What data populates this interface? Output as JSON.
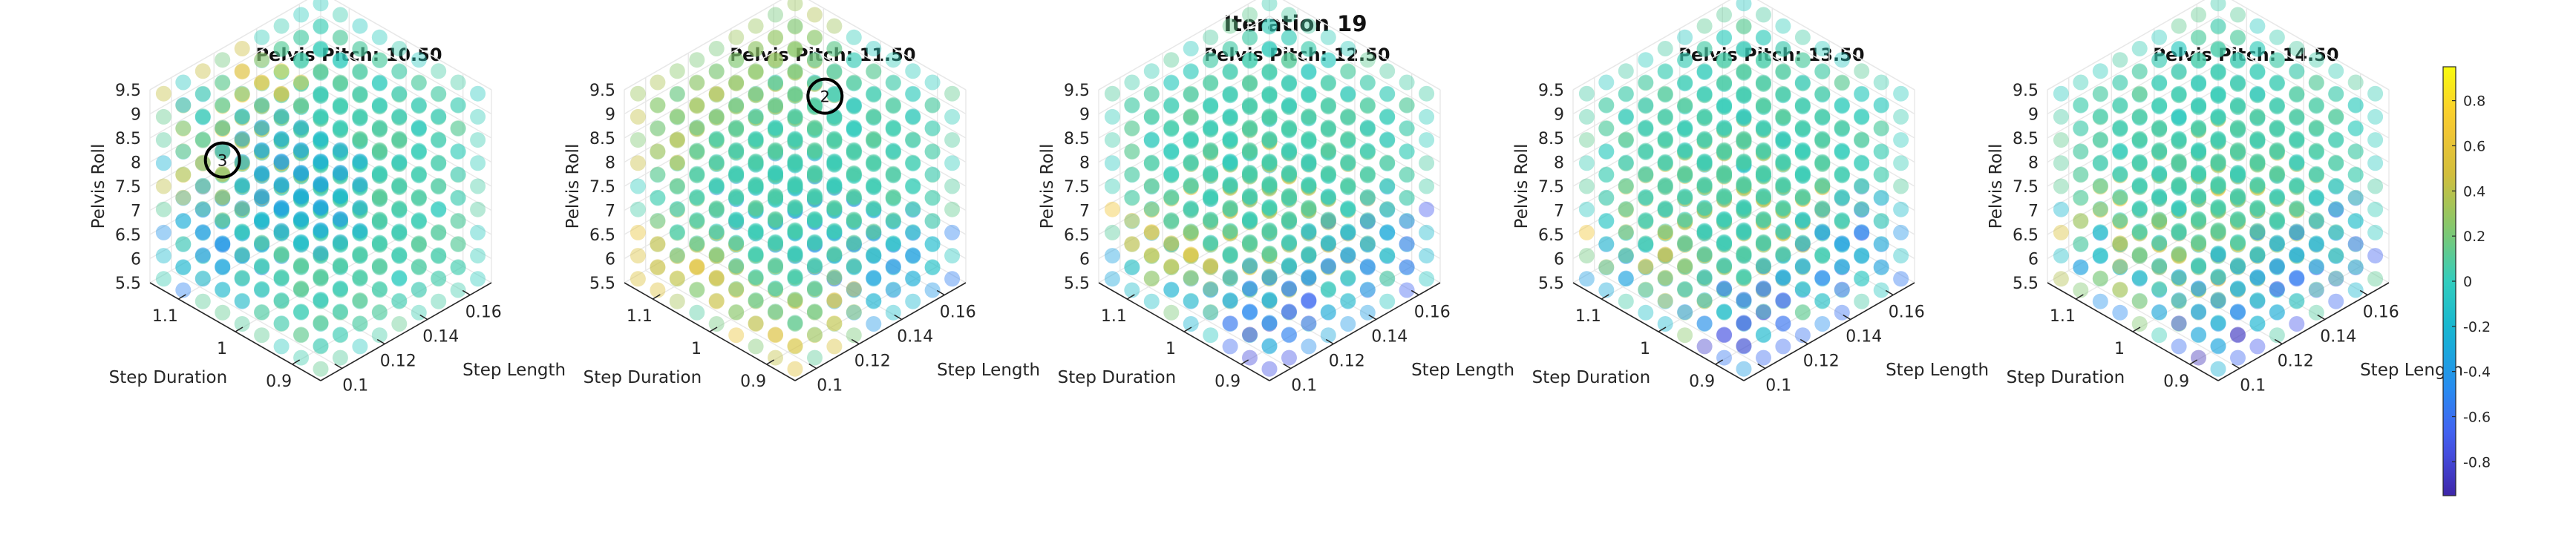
{
  "figure": {
    "title": "Iteration 19"
  },
  "chart_data": {
    "type": "scatter3d",
    "title": "Iteration 19",
    "axes": {
      "x": {
        "label": "Step Length",
        "ticks": [
          "0.1",
          "0.12",
          "0.14",
          "0.16"
        ],
        "lim": [
          0.09,
          0.17
        ]
      },
      "y": {
        "label": "Step Duration",
        "ticks": [
          "0.9",
          "1",
          "1.1"
        ],
        "lim": [
          0.85,
          1.15
        ]
      },
      "z": {
        "label": "Pelvis Roll",
        "ticks": [
          "5.5",
          "6",
          "6.5",
          "7",
          "7.5",
          "8",
          "8.5",
          "9",
          "9.5"
        ],
        "lim": [
          5.5,
          9.5
        ]
      }
    },
    "grid": true,
    "colormap": "parula",
    "colorbar": {
      "position": "right",
      "ticks": [
        "0.8",
        "0.6",
        "0.4",
        "0.2",
        "0",
        "-0.2",
        "-0.4",
        "-0.6",
        "-0.8"
      ],
      "range": [
        -0.95,
        0.95
      ]
    },
    "panels": [
      {
        "title": "Pelvis Pitch: 10.50",
        "pelvis_pitch": 10.5,
        "marker": {
          "label": "3",
          "step_length": 0.1,
          "step_duration": 1.06,
          "pelvis_roll": 8.4
        }
      },
      {
        "title": "Pelvis Pitch: 11.50",
        "pelvis_pitch": 11.5,
        "marker": {
          "label": "2",
          "step_length": 0.16,
          "step_duration": 1.06,
          "pelvis_roll": 8.2
        }
      },
      {
        "title": "Pelvis Pitch: 12.50",
        "pelvis_pitch": 12.5,
        "marker": null
      },
      {
        "title": "Pelvis Pitch: 13.50",
        "pelvis_pitch": 13.5,
        "marker": null
      },
      {
        "title": "Pelvis Pitch: 14.50",
        "pelvis_pitch": 14.5,
        "marker": null
      }
    ]
  }
}
